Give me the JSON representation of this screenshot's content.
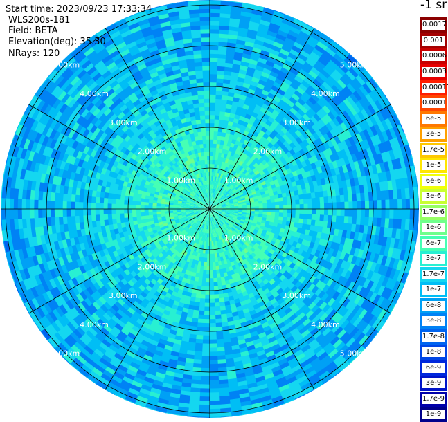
{
  "info": {
    "start_time": "Start time: 2023/09/23 17:33:34",
    "instrument": "WLS200s-181",
    "field": "Field: BETA",
    "elevation": "Elevation(deg): 35.30",
    "nrays": "NRays: 120"
  },
  "range_rings": [
    "1.00km",
    "2.00km",
    "3.00km",
    "4.00km",
    "5.00km"
  ],
  "colorbar": {
    "title": "-1 sr",
    "levels": [
      {
        "label": "0.0017",
        "color": "#8b0000"
      },
      {
        "label": "0.001",
        "color": "#a30000"
      },
      {
        "label": "0.0006",
        "color": "#c80000"
      },
      {
        "label": "0.0003",
        "color": "#e60000"
      },
      {
        "label": "0.00017",
        "color": "#ff1e00"
      },
      {
        "label": "0.0001",
        "color": "#ff4600"
      },
      {
        "label": "6e-5",
        "color": "#ff7800"
      },
      {
        "label": "3e-5",
        "color": "#ffa000"
      },
      {
        "label": "1.7e-5",
        "color": "#ffc800"
      },
      {
        "label": "1e-5",
        "color": "#ffe600"
      },
      {
        "label": "6e-6",
        "color": "#f0ff0a"
      },
      {
        "label": "3e-6",
        "color": "#c8ff32"
      },
      {
        "label": "1.7e-6",
        "color": "#96ff64"
      },
      {
        "label": "1e-6",
        "color": "#6eff8c"
      },
      {
        "label": "6e-7",
        "color": "#46ffb4"
      },
      {
        "label": "3e-7",
        "color": "#28f0d2"
      },
      {
        "label": "1.7e-7",
        "color": "#14d7f0"
      },
      {
        "label": "1e-7",
        "color": "#00bef5"
      },
      {
        "label": "6e-8",
        "color": "#00a0f5"
      },
      {
        "label": "3e-8",
        "color": "#0082f5"
      },
      {
        "label": "1.7e-8",
        "color": "#0064f0"
      },
      {
        "label": "1e-8",
        "color": "#0046e6"
      },
      {
        "label": "6e-9",
        "color": "#0028dc"
      },
      {
        "label": "3e-9",
        "color": "#0014c8"
      },
      {
        "label": "1.7e-9",
        "color": "#0000aa"
      },
      {
        "label": "1e-9",
        "color": "#00008c"
      }
    ]
  }
}
